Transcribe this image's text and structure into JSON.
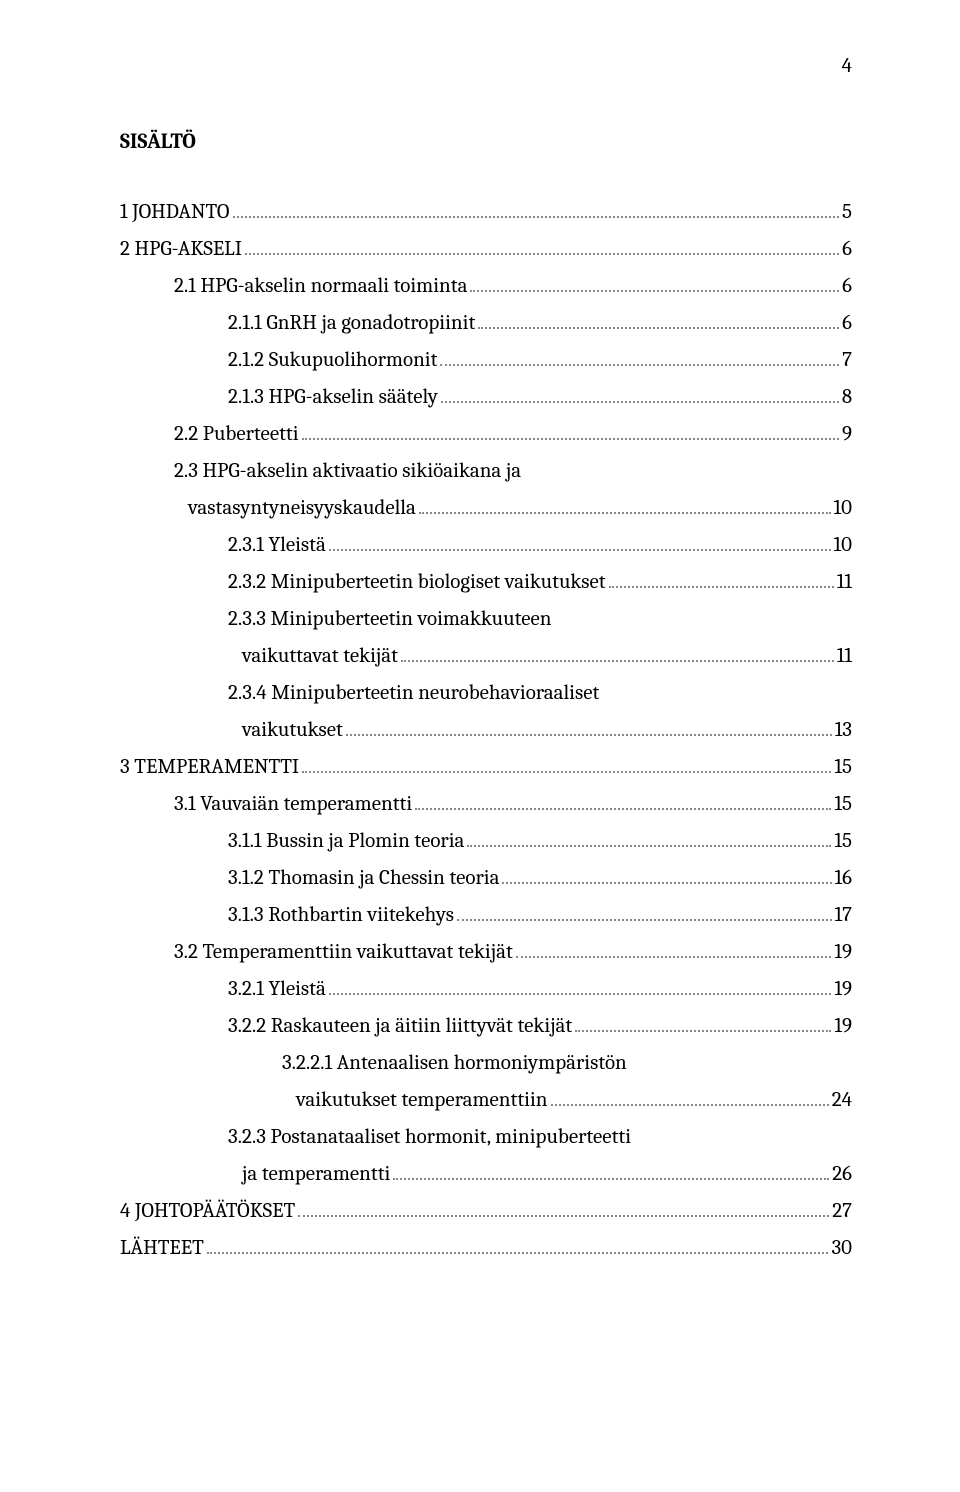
{
  "page_number": "4",
  "title": "SISÄLTÖ",
  "font": {
    "body_size_pt": 16,
    "title_size_pt": 16,
    "color": "#000000",
    "leader_color": "#888888"
  },
  "background_color": "#ffffff",
  "toc": [
    {
      "level": 0,
      "label": "1 JOHDANTO",
      "page": "5"
    },
    {
      "level": 0,
      "label": "2 HPG-AKSELI",
      "page": "6"
    },
    {
      "level": 1,
      "label": "2.1 HPG-akselin normaali toiminta",
      "page": "6"
    },
    {
      "level": 2,
      "label": "2.1.1 GnRH ja gonadotropiinit",
      "page": "6"
    },
    {
      "level": 2,
      "label": "2.1.2 Sukupuolihormonit",
      "page": "7"
    },
    {
      "level": 2,
      "label": "2.1.3 HPG-akselin säätely",
      "page": "8"
    },
    {
      "level": 1,
      "label": "2.2 Puberteetti",
      "page": "9"
    },
    {
      "level": 1,
      "label": "2.3 HPG-akselin aktivaatio sikiöaikana ja",
      "page": ""
    },
    {
      "level": 1,
      "cont": true,
      "label": "vastasyntyneisyyskaudella",
      "page": "10"
    },
    {
      "level": 2,
      "label": "2.3.1 Yleistä",
      "page": "10"
    },
    {
      "level": 2,
      "label": "2.3.2 Minipuberteetin biologiset vaikutukset",
      "page": "11"
    },
    {
      "level": 2,
      "label": "2.3.3 Minipuberteetin voimakkuuteen",
      "page": ""
    },
    {
      "level": 2,
      "cont": true,
      "label": "vaikuttavat tekijät",
      "page": "11"
    },
    {
      "level": 2,
      "label": "2.3.4 Minipuberteetin neurobehavioraaliset",
      "page": ""
    },
    {
      "level": 2,
      "cont": true,
      "label": "vaikutukset",
      "page": "13"
    },
    {
      "level": 0,
      "label": "3 TEMPERAMENTTI",
      "page": "15"
    },
    {
      "level": 1,
      "label": "3.1 Vauvaiän temperamentti",
      "page": "15"
    },
    {
      "level": 2,
      "label": "3.1.1 Bussin ja Plomin teoria",
      "page": "15"
    },
    {
      "level": 2,
      "label": "3.1.2 Thomasin ja Chessin teoria",
      "page": "16"
    },
    {
      "level": 2,
      "label": "3.1.3 Rothbartin viitekehys",
      "page": "17"
    },
    {
      "level": 1,
      "label": "3.2 Temperamenttiin vaikuttavat tekijät",
      "page": "19"
    },
    {
      "level": 2,
      "label": "3.2.1 Yleistä",
      "page": "19"
    },
    {
      "level": 2,
      "label": "3.2.2 Raskauteen ja äitiin liittyvät tekijät",
      "page": "19"
    },
    {
      "level": 3,
      "label": "3.2.2.1 Antenaalisen hormoniympäristön",
      "page": ""
    },
    {
      "level": 3,
      "cont": true,
      "label": "vaikutukset temperamenttiin",
      "page": "24"
    },
    {
      "level": 2,
      "label": "3.2.3 Postanataaliset hormonit, minipuberteetti",
      "page": ""
    },
    {
      "level": 2,
      "cont": true,
      "label": "ja temperamentti",
      "page": "26"
    },
    {
      "level": 0,
      "label": "4 JOHTOPÄÄTÖKSET",
      "page": "27"
    },
    {
      "level": 0,
      "label": "LÄHTEET",
      "page": "30"
    }
  ]
}
